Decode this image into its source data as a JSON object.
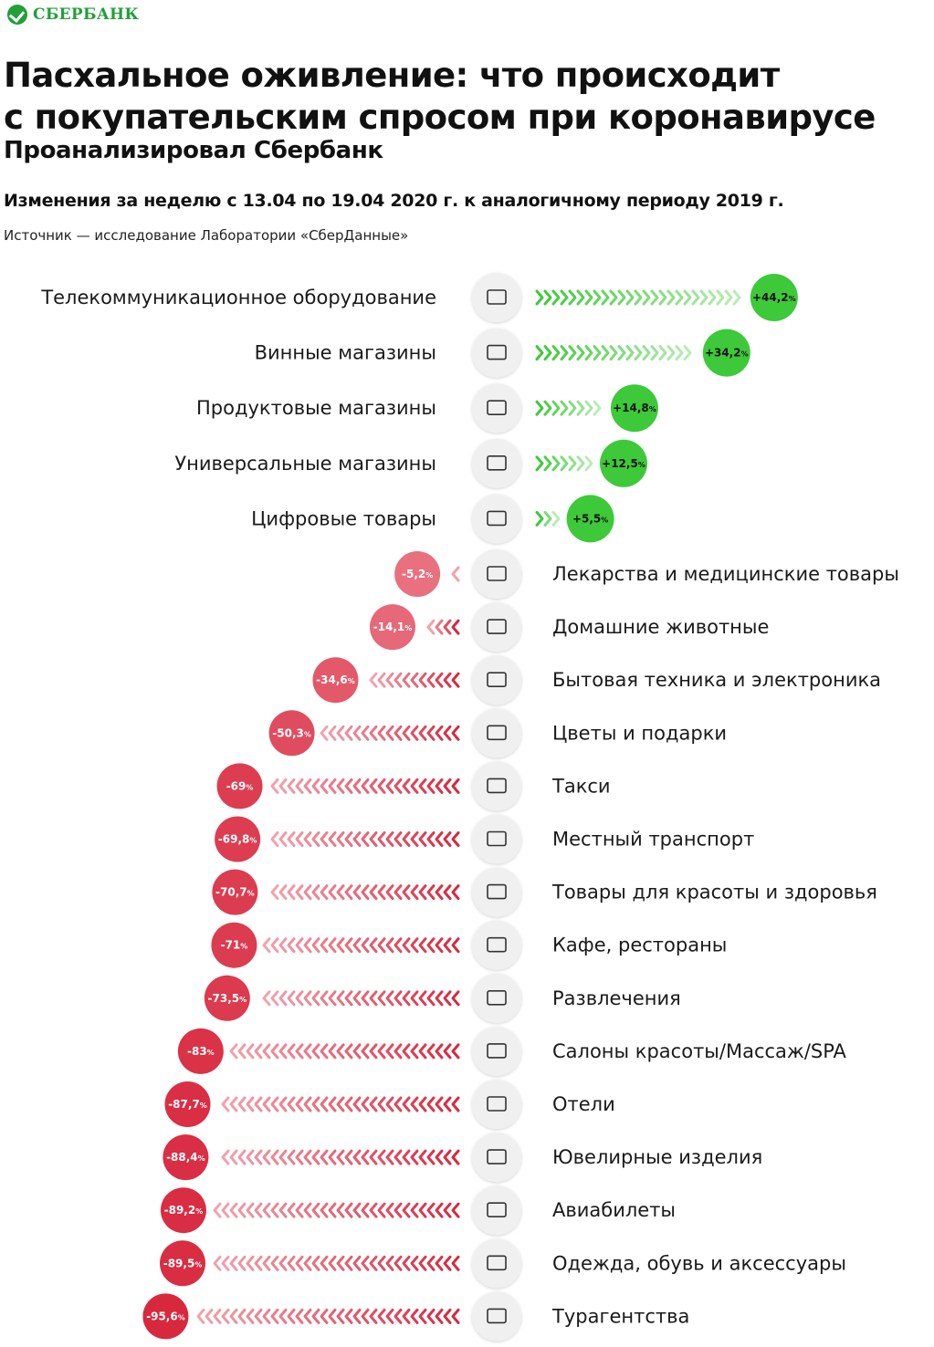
{
  "brand": {
    "name": "СБЕРБАНК",
    "icon": "sberbank-logo-icon",
    "color": "#21a038"
  },
  "header": {
    "title_line1": "Пасхальное оживление: что происходит",
    "title_line2": "с покупательским спросом при коронавирусе",
    "subtitle": "Проанализировал Сбербанк",
    "period": "Изменения за неделю с 13.04 по 19.04 2020 г. к аналогичному периоду 2019 г.",
    "source": "Источник — исследование Лаборатории «СберДанные»"
  },
  "colors": {
    "positive": "#3ec93a",
    "positive_light": "#b9ecb3",
    "negative": "#d8283e",
    "negative_light": "#f1a2ad",
    "icon_bg": "#f0f0f0"
  },
  "chart_data": {
    "type": "bar",
    "unit": "%",
    "categories": [
      "Телекоммуникационное оборудование",
      "Винные магазины",
      "Продуктовые магазины",
      "Универсальные магазины",
      "Цифровые товары",
      "Лекарства и медицинские товары",
      "Домашние животные",
      "Бытовая техника и электроника",
      "Цветы и подарки",
      "Такси",
      "Местный транспорт",
      "Товары для красоты и здоровья",
      "Кафе, рестораны",
      "Развлечения",
      "Салоны красоты/Массаж/SPA",
      "Отели",
      "Ювелирные изделия",
      "Авиабилеты",
      "Одежда, обувь и аксессуары",
      "Турагентства"
    ],
    "values": [
      44.2,
      34.2,
      14.8,
      12.5,
      5.5,
      -5.2,
      -14.1,
      -34.6,
      -50.3,
      -69,
      -69.8,
      -70.7,
      -71,
      -73.5,
      -83,
      -87.7,
      -88.4,
      -89.2,
      -89.5,
      -95.6
    ],
    "value_labels": [
      "+44,2",
      "+34,2",
      "+14,8",
      "+12,5",
      "+5,5",
      "-5,2",
      "-14,1",
      "-34,6",
      "-50,3",
      "-69",
      "-69,8",
      "-70,7",
      "-71",
      "-73,5",
      "-83",
      "-87,7",
      "-88,4",
      "-89,2",
      "-89,5",
      "-95,6"
    ],
    "percent_sign": "%",
    "icons": [
      "tv-icon",
      "wine-bottles-icon",
      "grocery-basket-icon",
      "shopping-cart-icon",
      "smartwatch-icon",
      "medicine-icon",
      "dog-icon",
      "appliances-icon",
      "flower-icon",
      "taxi-icon",
      "bus-icon",
      "cosmetics-icon",
      "cafe-icon",
      "movie-camera-icon",
      "spa-icon",
      "hotel-icon",
      "necklace-icon",
      "plane-ticket-icon",
      "clothes-icon",
      "suitcase-icon"
    ]
  }
}
